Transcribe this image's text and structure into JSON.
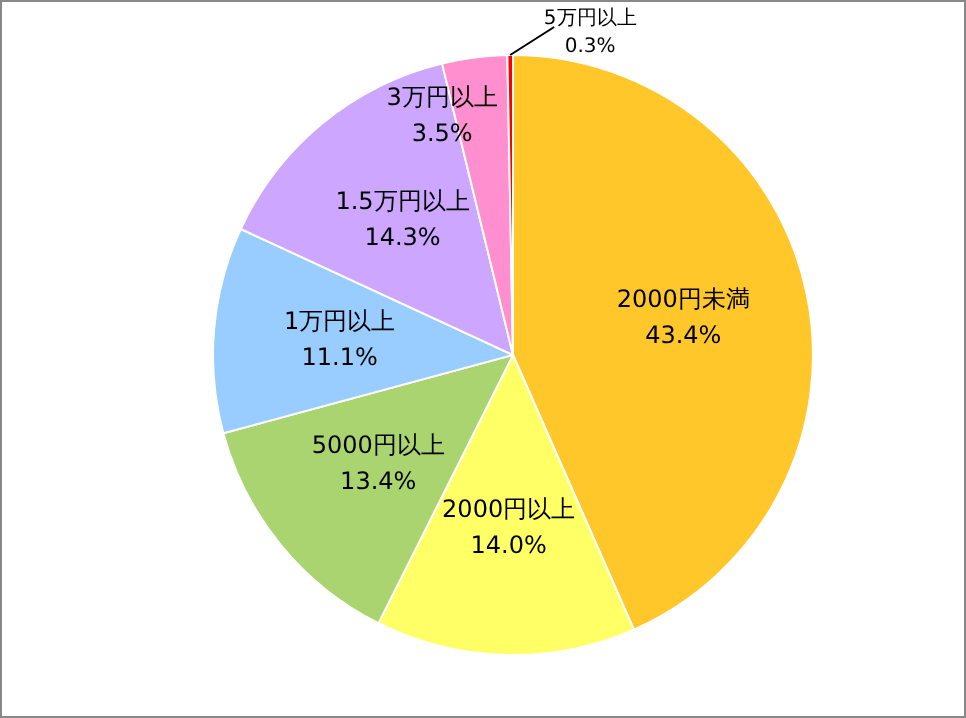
{
  "chart_data": {
    "type": "pie",
    "categories": [
      "2000円未満",
      "2000円以上",
      "5000円以上",
      "1万円以上",
      "1.5万円以上",
      "3万円以上",
      "5万円以上"
    ],
    "values": [
      43.4,
      14.0,
      13.4,
      11.1,
      14.3,
      3.5,
      0.3
    ],
    "value_labels": [
      "43.4%",
      "14.0%",
      "13.4%",
      "11.1%",
      "14.3%",
      "3.5%",
      "0.3%"
    ],
    "colors": [
      "#ffc729",
      "#ffff66",
      "#a9d46f",
      "#99ccff",
      "#cca6ff",
      "#ff8fcf",
      "#ff0000"
    ],
    "legend": false
  }
}
